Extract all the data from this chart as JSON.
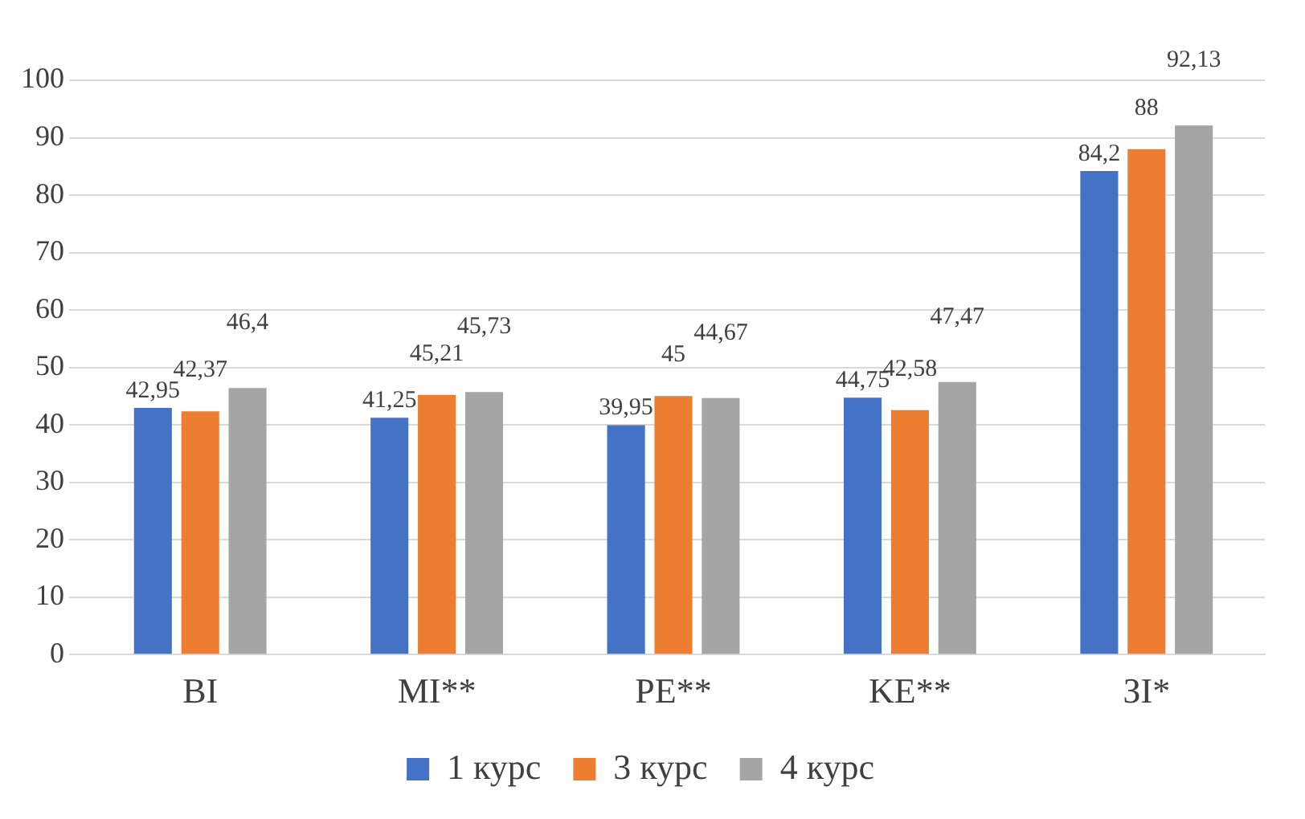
{
  "chart_data": {
    "type": "bar",
    "categories": [
      "BI",
      "MI**",
      "PE**",
      "KE**",
      "ЗІ*"
    ],
    "series": [
      {
        "name": "1 курс",
        "color": "#4472c4",
        "values": [
          42.95,
          41.25,
          39.95,
          44.75,
          84.2
        ],
        "value_labels": [
          "42,95",
          "41,25",
          "39,95",
          "44,75",
          "84,2"
        ]
      },
      {
        "name": "3 курс",
        "color": "#ed7d31",
        "values": [
          42.37,
          45.21,
          45,
          42.58,
          88
        ],
        "value_labels": [
          "42,37",
          "45,21",
          "45",
          "42,58",
          "88"
        ]
      },
      {
        "name": "4 курс",
        "color": "#a5a5a5",
        "values": [
          46.4,
          45.73,
          44.67,
          47.47,
          92.13
        ],
        "value_labels": [
          "46,4",
          "45,73",
          "44,67",
          "47,47",
          "92,13"
        ]
      }
    ],
    "ylim": [
      0,
      100
    ],
    "yticks": [
      0,
      10,
      20,
      30,
      40,
      50,
      60,
      70,
      80,
      90,
      100
    ],
    "grid": "y",
    "legend": "bottom"
  }
}
